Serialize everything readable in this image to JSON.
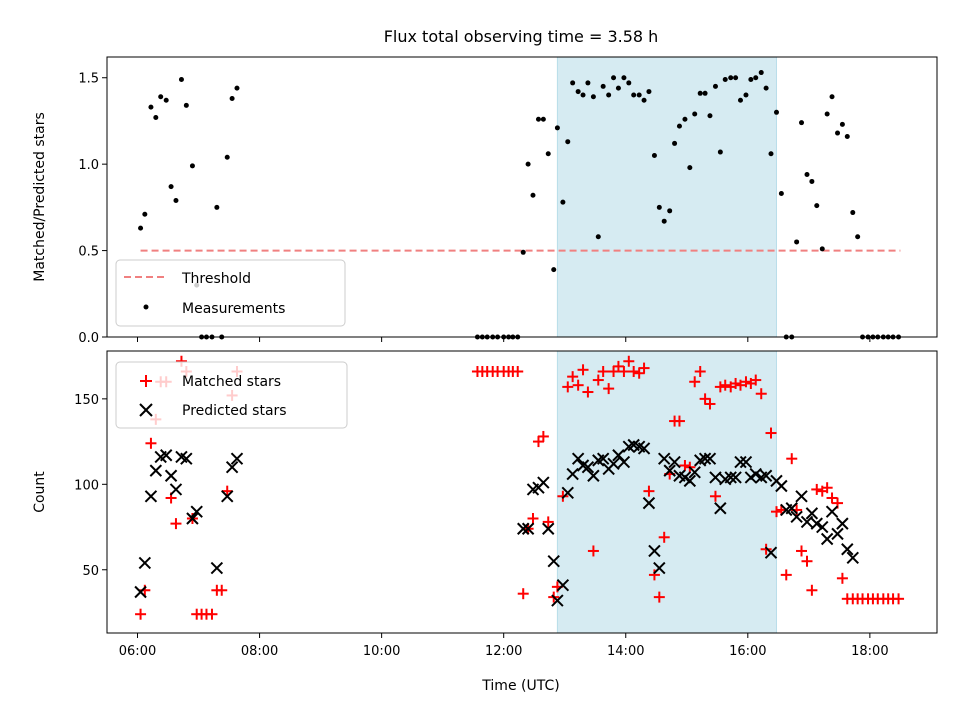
{
  "chart_data": [
    {
      "type": "scatter",
      "title": "Flux total observing time = 3.58 h",
      "xlabel": "",
      "ylabel": "Matched/Predicted stars",
      "xlim": [
        5.5,
        19.1
      ],
      "ylim": [
        0.0,
        1.62
      ],
      "yticks": [
        0.0,
        0.5,
        1.0,
        1.5
      ],
      "xticks": [
        "06:00",
        "08:00",
        "10:00",
        "12:00",
        "14:00",
        "16:00",
        "18:00"
      ],
      "xtick_values": [
        6,
        8,
        10,
        12,
        14,
        16,
        18
      ],
      "highlight_span": {
        "x0": 12.88,
        "x1": 16.47,
        "color": "#add8e6"
      },
      "threshold": {
        "name": "Threshold",
        "y": 0.5,
        "x0": 6.05,
        "x1": 18.5,
        "color": "#f08080"
      },
      "legend": {
        "placement": "bottom-left",
        "entries": [
          "Threshold",
          "Measurements"
        ]
      },
      "series": [
        {
          "name": "Measurements",
          "marker": "dot",
          "color": "#000000",
          "x": [
            6.05,
            6.12,
            6.22,
            6.3,
            6.38,
            6.47,
            6.55,
            6.63,
            6.72,
            6.8,
            6.9,
            6.97,
            7.05,
            7.13,
            7.22,
            7.3,
            7.38,
            7.47,
            7.55,
            7.63,
            11.57,
            11.65,
            11.73,
            11.82,
            11.9,
            12.0,
            12.08,
            12.15,
            12.23,
            12.32,
            12.4,
            12.48,
            12.57,
            12.65,
            12.73,
            12.82,
            12.88,
            12.97,
            13.05,
            13.13,
            13.22,
            13.3,
            13.38,
            13.47,
            13.55,
            13.63,
            13.72,
            13.8,
            13.88,
            13.97,
            14.05,
            14.13,
            14.22,
            14.3,
            14.38,
            14.47,
            14.55,
            14.63,
            14.72,
            14.8,
            14.88,
            14.97,
            15.05,
            15.13,
            15.22,
            15.3,
            15.38,
            15.47,
            15.55,
            15.63,
            15.72,
            15.8,
            15.88,
            15.97,
            16.05,
            16.13,
            16.22,
            16.3,
            16.38,
            16.47,
            16.55,
            16.63,
            16.72,
            16.8,
            16.88,
            16.97,
            17.05,
            17.13,
            17.22,
            17.3,
            17.38,
            17.47,
            17.55,
            17.63,
            17.72,
            17.8,
            17.88,
            17.97,
            18.05,
            18.13,
            18.22,
            18.3,
            18.38,
            18.47
          ],
          "y": [
            0.63,
            0.71,
            1.33,
            1.27,
            1.39,
            1.37,
            0.87,
            0.79,
            1.49,
            1.34,
            0.99,
            0.3,
            0.0,
            0.0,
            0.0,
            0.75,
            0.0,
            1.04,
            1.38,
            1.44,
            0.0,
            0.0,
            0.0,
            0.0,
            0.0,
            0.0,
            0.0,
            0.0,
            0.0,
            0.49,
            1.0,
            0.82,
            1.26,
            1.26,
            1.06,
            0.39,
            1.21,
            0.78,
            1.13,
            1.47,
            1.42,
            1.4,
            1.47,
            1.39,
            0.58,
            1.45,
            1.4,
            1.5,
            1.44,
            1.5,
            1.47,
            1.4,
            1.4,
            1.37,
            1.42,
            1.05,
            0.75,
            0.67,
            0.73,
            1.12,
            1.22,
            1.26,
            0.98,
            1.29,
            1.41,
            1.41,
            1.28,
            1.45,
            1.07,
            1.49,
            1.5,
            1.5,
            1.37,
            1.4,
            1.49,
            1.5,
            1.53,
            1.44,
            1.06,
            1.3,
            0.83,
            0.0,
            0.0,
            0.55,
            1.24,
            0.94,
            0.9,
            0.76,
            0.51,
            1.29,
            1.39,
            1.18,
            1.23,
            1.16,
            0.72,
            0.58,
            0.0,
            0.0,
            0.0,
            0.0,
            0.0,
            0.0,
            0.0,
            0.0
          ]
        }
      ]
    },
    {
      "type": "scatter",
      "title": "",
      "xlabel": "Time (UTC)",
      "ylabel": "Count",
      "xlim": [
        5.5,
        19.1
      ],
      "ylim": [
        13,
        178
      ],
      "yticks": [
        50,
        100,
        150
      ],
      "xticks": [
        "06:00",
        "08:00",
        "10:00",
        "12:00",
        "14:00",
        "16:00",
        "18:00"
      ],
      "xtick_values": [
        6,
        8,
        10,
        12,
        14,
        16,
        18
      ],
      "highlight_span": {
        "x0": 12.88,
        "x1": 16.47,
        "color": "#add8e6"
      },
      "legend": {
        "placement": "top-left",
        "entries": [
          "Matched stars",
          "Predicted stars"
        ]
      },
      "series": [
        {
          "name": "Matched stars",
          "marker": "plus",
          "color": "#ff0000",
          "x": [
            6.05,
            6.12,
            6.22,
            6.3,
            6.38,
            6.47,
            6.55,
            6.63,
            6.72,
            6.8,
            6.9,
            6.97,
            7.05,
            7.13,
            7.22,
            7.3,
            7.38,
            7.47,
            7.55,
            7.63,
            11.57,
            11.65,
            11.73,
            11.82,
            11.9,
            12.0,
            12.08,
            12.15,
            12.23,
            12.32,
            12.4,
            12.48,
            12.57,
            12.65,
            12.73,
            12.82,
            12.88,
            12.97,
            13.05,
            13.13,
            13.22,
            13.3,
            13.38,
            13.47,
            13.55,
            13.63,
            13.72,
            13.8,
            13.88,
            13.97,
            14.05,
            14.13,
            14.22,
            14.3,
            14.38,
            14.47,
            14.55,
            14.63,
            14.72,
            14.8,
            14.88,
            14.97,
            15.05,
            15.13,
            15.22,
            15.3,
            15.38,
            15.47,
            15.55,
            15.63,
            15.72,
            15.8,
            15.88,
            15.97,
            16.05,
            16.13,
            16.22,
            16.3,
            16.38,
            16.47,
            16.55,
            16.63,
            16.72,
            16.8,
            16.88,
            16.97,
            17.05,
            17.13,
            17.22,
            17.3,
            17.38,
            17.47,
            17.55,
            17.63,
            17.72,
            17.8,
            17.88,
            17.97,
            18.05,
            18.13,
            18.22,
            18.3,
            18.38,
            18.47
          ],
          "y": [
            24,
            38,
            124,
            138,
            160,
            160,
            92,
            77,
            172,
            166,
            80,
            24,
            24,
            24,
            24,
            38,
            38,
            96,
            152,
            166,
            166,
            166,
            166,
            166,
            166,
            166,
            166,
            166,
            166,
            36,
            74,
            80,
            125,
            128,
            78,
            34,
            40,
            93,
            157,
            163,
            158,
            167,
            154,
            61,
            161,
            166,
            156,
            166,
            169,
            166,
            172,
            166,
            165,
            168,
            96,
            47,
            34,
            69,
            106,
            137,
            137,
            111,
            110,
            160,
            166,
            150,
            147,
            93,
            157,
            158,
            157,
            159,
            158,
            160,
            159,
            161,
            153,
            62,
            130,
            84,
            85,
            47,
            115,
            85,
            61,
            55,
            38,
            97,
            96,
            98,
            92,
            89,
            45,
            33,
            33,
            33,
            33,
            33,
            33,
            33,
            33,
            33,
            33,
            33
          ]
        },
        {
          "name": "Predicted stars",
          "marker": "cross",
          "color": "#000000",
          "x": [
            6.05,
            6.12,
            6.22,
            6.3,
            6.38,
            6.47,
            6.55,
            6.63,
            6.72,
            6.8,
            6.9,
            6.97,
            7.3,
            7.47,
            7.55,
            7.63,
            12.32,
            12.4,
            12.48,
            12.57,
            12.65,
            12.73,
            12.82,
            12.88,
            12.97,
            13.05,
            13.13,
            13.22,
            13.3,
            13.38,
            13.47,
            13.55,
            13.63,
            13.72,
            13.8,
            13.88,
            13.97,
            14.05,
            14.13,
            14.22,
            14.3,
            14.38,
            14.47,
            14.55,
            14.63,
            14.72,
            14.8,
            14.88,
            14.97,
            15.05,
            15.13,
            15.22,
            15.3,
            15.38,
            15.47,
            15.55,
            15.63,
            15.72,
            15.8,
            15.88,
            15.97,
            16.05,
            16.13,
            16.22,
            16.3,
            16.38,
            16.47,
            16.55,
            16.63,
            16.72,
            16.8,
            16.88,
            16.97,
            17.05,
            17.13,
            17.22,
            17.3,
            17.38,
            17.47,
            17.55,
            17.63,
            17.72
          ],
          "y": [
            37,
            54,
            93,
            108,
            116,
            117,
            105,
            97,
            116,
            115,
            80,
            84,
            51,
            93,
            110,
            115,
            74,
            74,
            97,
            98,
            101,
            74,
            55,
            32,
            41,
            95,
            106,
            115,
            111,
            110,
            105,
            114,
            115,
            109,
            112,
            117,
            113,
            122,
            123,
            122,
            121,
            89,
            61,
            51,
            115,
            108,
            113,
            105,
            104,
            102,
            107,
            114,
            115,
            115,
            104,
            86,
            103,
            104,
            104,
            113,
            113,
            104,
            106,
            104,
            105,
            60,
            102,
            99,
            85,
            86,
            81,
            93,
            78,
            83,
            77,
            75,
            68,
            84,
            71,
            77,
            62,
            57
          ]
        }
      ]
    }
  ]
}
